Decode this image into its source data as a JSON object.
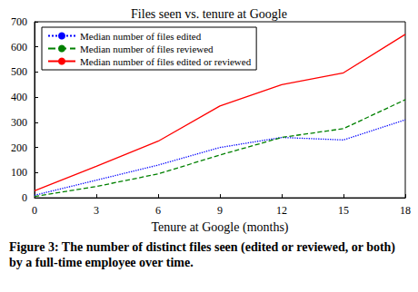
{
  "chart_data": {
    "type": "line",
    "title": "Files seen vs. tenure at Google",
    "xlabel": "Tenure at Google (months)",
    "caption": "Figure 3: The number of distinct files seen (edited or reviewed, or both) by a full-time employee over time.",
    "x": [
      0,
      3,
      6,
      9,
      12,
      15,
      18
    ],
    "series": [
      {
        "name": "Median number of files edited",
        "color": "#0000ff",
        "line_style": "dotted",
        "values": [
          10,
          70,
          130,
          200,
          240,
          230,
          310
        ]
      },
      {
        "name": "Median number of files reviewed",
        "color": "#008000",
        "line_style": "dashed",
        "values": [
          5,
          45,
          95,
          170,
          240,
          275,
          390
        ]
      },
      {
        "name": "Median number of files edited or reviewed",
        "color": "#ff0000",
        "line_style": "solid",
        "values": [
          28,
          125,
          225,
          365,
          450,
          497,
          650
        ]
      }
    ],
    "xlim": [
      0,
      18
    ],
    "xticks": [
      0,
      3,
      6,
      9,
      12,
      15,
      18
    ],
    "ylim": [
      0,
      700
    ],
    "yticks": [
      0,
      100,
      200,
      300,
      400,
      500,
      600,
      700
    ],
    "grid": false,
    "legend": "upper left"
  }
}
